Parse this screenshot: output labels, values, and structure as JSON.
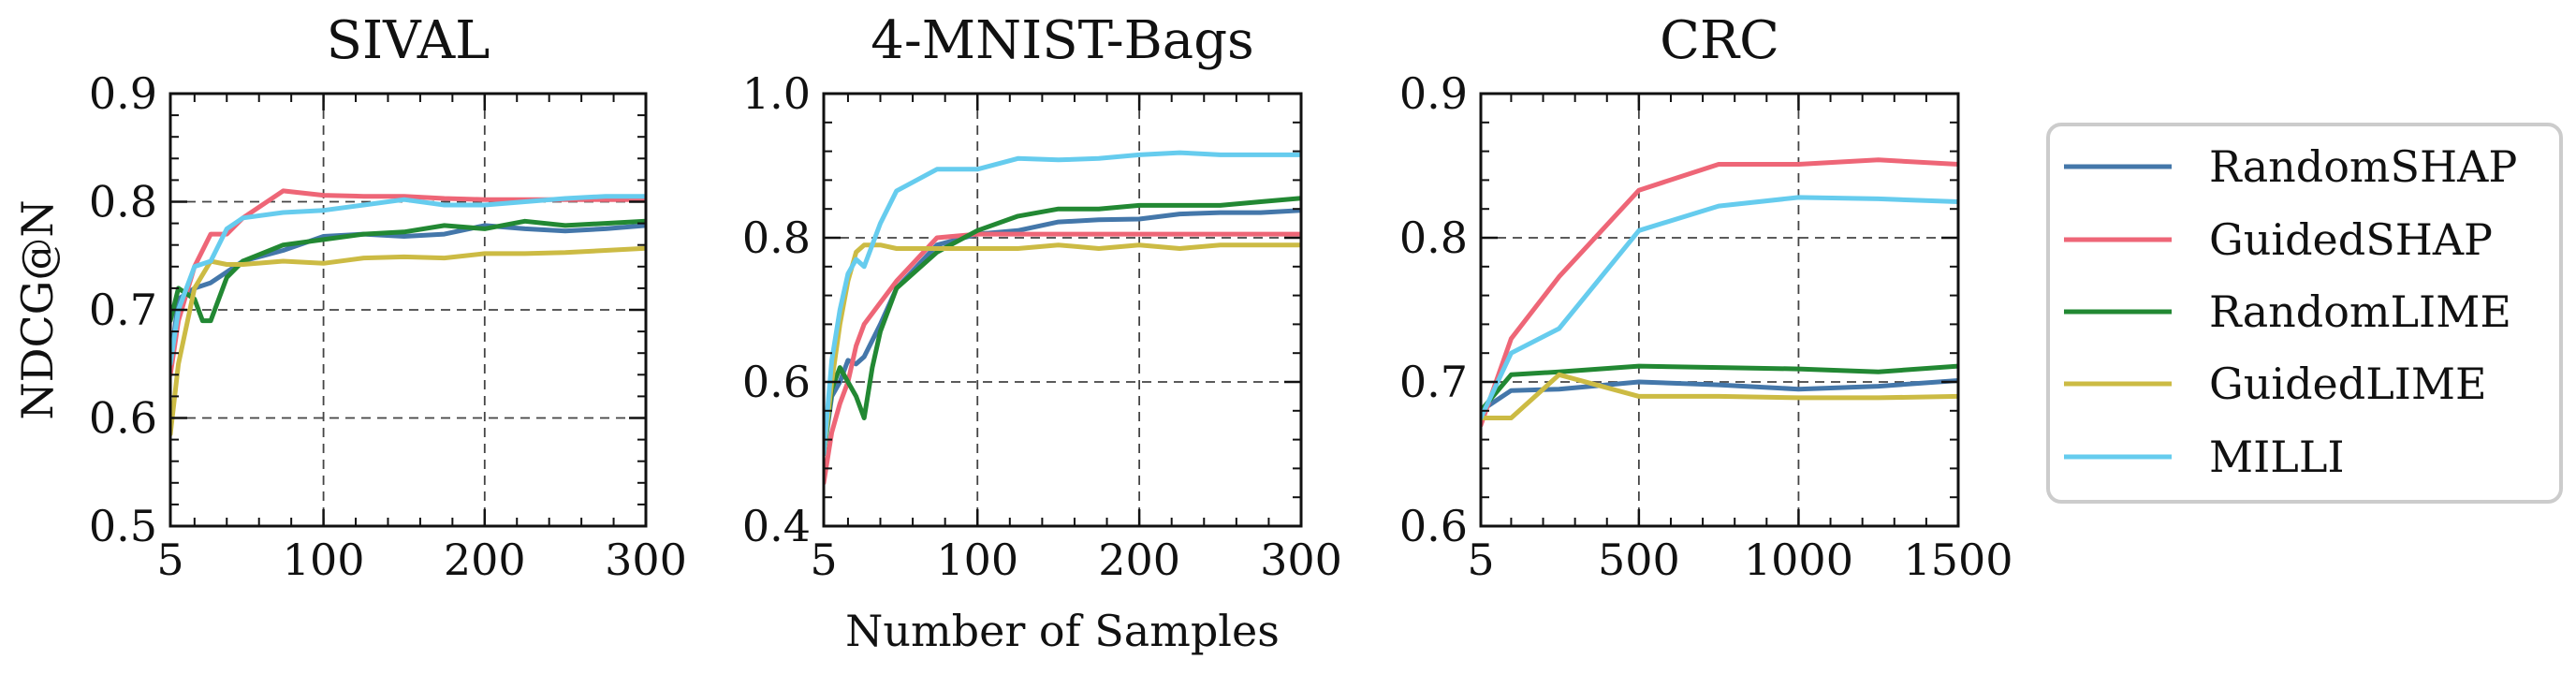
{
  "chart_data": [
    {
      "type": "line",
      "title": "SIVAL",
      "xlabel": "",
      "ylabel": "NDCG@N",
      "xlim": [
        5,
        300
      ],
      "ylim": [
        0.5,
        0.9
      ],
      "xticks": [
        5,
        100,
        200,
        300
      ],
      "yticks": [
        0.5,
        0.6,
        0.7,
        0.8,
        0.9
      ],
      "xtick_labels": [
        "5",
        "100",
        "200",
        "300"
      ],
      "ytick_labels": [
        "0.5",
        "0.6",
        "0.7",
        "0.8",
        "0.9"
      ],
      "grid": true,
      "series": [
        {
          "name": "RandomSHAP",
          "x": [
            5,
            10,
            20,
            30,
            40,
            50,
            75,
            100,
            125,
            150,
            175,
            200,
            225,
            250,
            275,
            300
          ],
          "y": [
            0.65,
            0.71,
            0.72,
            0.725,
            0.735,
            0.745,
            0.755,
            0.768,
            0.77,
            0.768,
            0.77,
            0.778,
            0.775,
            0.773,
            0.775,
            0.778
          ]
        },
        {
          "name": "GuidedSHAP",
          "x": [
            5,
            10,
            20,
            30,
            40,
            50,
            75,
            100,
            125,
            150,
            175,
            200,
            225,
            250,
            275,
            300
          ],
          "y": [
            0.64,
            0.69,
            0.74,
            0.77,
            0.77,
            0.785,
            0.81,
            0.806,
            0.805,
            0.805,
            0.803,
            0.802,
            0.802,
            0.802,
            0.802,
            0.802
          ]
        },
        {
          "name": "RandomLIME",
          "x": [
            5,
            10,
            20,
            25,
            30,
            40,
            50,
            75,
            100,
            125,
            150,
            175,
            200,
            225,
            250,
            275,
            300
          ],
          "y": [
            0.69,
            0.72,
            0.71,
            0.69,
            0.69,
            0.73,
            0.745,
            0.76,
            0.765,
            0.77,
            0.772,
            0.778,
            0.775,
            0.782,
            0.778,
            0.78,
            0.782
          ]
        },
        {
          "name": "GuidedLIME",
          "x": [
            5,
            10,
            20,
            30,
            40,
            50,
            75,
            100,
            125,
            150,
            175,
            200,
            225,
            250,
            275,
            300
          ],
          "y": [
            0.585,
            0.65,
            0.72,
            0.745,
            0.742,
            0.742,
            0.745,
            0.743,
            0.748,
            0.749,
            0.748,
            0.752,
            0.752,
            0.753,
            0.755,
            0.757
          ]
        },
        {
          "name": "MILLI",
          "x": [
            5,
            10,
            20,
            30,
            40,
            50,
            75,
            100,
            125,
            150,
            175,
            200,
            225,
            250,
            275,
            300
          ],
          "y": [
            0.65,
            0.7,
            0.74,
            0.745,
            0.775,
            0.785,
            0.79,
            0.792,
            0.797,
            0.802,
            0.797,
            0.797,
            0.8,
            0.803,
            0.805,
            0.805
          ]
        }
      ]
    },
    {
      "type": "line",
      "title": "4-MNIST-Bags",
      "xlabel": "Number of Samples",
      "ylabel": "",
      "xlim": [
        5,
        300
      ],
      "ylim": [
        0.4,
        1.0
      ],
      "xticks": [
        5,
        100,
        200,
        300
      ],
      "yticks": [
        0.4,
        0.6,
        0.8,
        1.0
      ],
      "xtick_labels": [
        "5",
        "100",
        "200",
        "300"
      ],
      "ytick_labels": [
        "0.4",
        "0.6",
        "0.8",
        "1.0"
      ],
      "grid": true,
      "series": [
        {
          "name": "RandomSHAP",
          "x": [
            5,
            10,
            15,
            20,
            25,
            30,
            40,
            50,
            75,
            100,
            125,
            150,
            175,
            200,
            225,
            250,
            275,
            300
          ],
          "y": [
            0.5,
            0.58,
            0.6,
            0.63,
            0.625,
            0.635,
            0.68,
            0.73,
            0.79,
            0.805,
            0.81,
            0.822,
            0.825,
            0.826,
            0.833,
            0.835,
            0.835,
            0.838
          ]
        },
        {
          "name": "GuidedSHAP",
          "x": [
            5,
            10,
            15,
            20,
            25,
            30,
            40,
            50,
            75,
            100,
            125,
            150,
            175,
            200,
            225,
            250,
            275,
            300
          ],
          "y": [
            0.46,
            0.53,
            0.57,
            0.6,
            0.65,
            0.68,
            0.71,
            0.74,
            0.8,
            0.805,
            0.805,
            0.805,
            0.805,
            0.805,
            0.805,
            0.805,
            0.805,
            0.805
          ]
        },
        {
          "name": "RandomLIME",
          "x": [
            5,
            10,
            15,
            20,
            25,
            30,
            35,
            40,
            50,
            75,
            100,
            125,
            150,
            175,
            200,
            225,
            250,
            275,
            300
          ],
          "y": [
            0.5,
            0.59,
            0.62,
            0.6,
            0.58,
            0.55,
            0.62,
            0.67,
            0.73,
            0.78,
            0.81,
            0.83,
            0.84,
            0.84,
            0.845,
            0.845,
            0.845,
            0.85,
            0.855
          ]
        },
        {
          "name": "GuidedLIME",
          "x": [
            5,
            10,
            15,
            20,
            25,
            30,
            40,
            50,
            75,
            100,
            125,
            150,
            175,
            200,
            225,
            250,
            275,
            300
          ],
          "y": [
            0.5,
            0.6,
            0.68,
            0.74,
            0.78,
            0.79,
            0.79,
            0.785,
            0.785,
            0.785,
            0.785,
            0.79,
            0.785,
            0.79,
            0.785,
            0.79,
            0.79,
            0.79
          ]
        },
        {
          "name": "MILLI",
          "x": [
            5,
            10,
            15,
            20,
            25,
            30,
            40,
            50,
            75,
            100,
            125,
            150,
            175,
            200,
            225,
            250,
            275,
            300
          ],
          "y": [
            0.5,
            0.63,
            0.7,
            0.75,
            0.77,
            0.76,
            0.82,
            0.865,
            0.895,
            0.895,
            0.91,
            0.908,
            0.91,
            0.915,
            0.918,
            0.915,
            0.915,
            0.915
          ]
        }
      ]
    },
    {
      "type": "line",
      "title": "CRC",
      "xlabel": "",
      "ylabel": "",
      "xlim": [
        5,
        1500
      ],
      "ylim": [
        0.6,
        0.9
      ],
      "xticks": [
        5,
        500,
        1000,
        1500
      ],
      "yticks": [
        0.6,
        0.7,
        0.8,
        0.9
      ],
      "xtick_labels": [
        "5",
        "500",
        "1000",
        "1500"
      ],
      "ytick_labels": [
        "0.6",
        "0.7",
        "0.8",
        "0.9"
      ],
      "grid": true,
      "series": [
        {
          "name": "RandomSHAP",
          "x": [
            5,
            100,
            250,
            500,
            750,
            1000,
            1250,
            1500
          ],
          "y": [
            0.68,
            0.694,
            0.695,
            0.7,
            0.698,
            0.695,
            0.697,
            0.701
          ]
        },
        {
          "name": "GuidedSHAP",
          "x": [
            5,
            100,
            250,
            500,
            750,
            1000,
            1250,
            1500
          ],
          "y": [
            0.67,
            0.73,
            0.773,
            0.833,
            0.851,
            0.851,
            0.854,
            0.851
          ]
        },
        {
          "name": "RandomLIME",
          "x": [
            5,
            100,
            250,
            500,
            750,
            1000,
            1250,
            1500
          ],
          "y": [
            0.68,
            0.705,
            0.707,
            0.711,
            0.71,
            0.709,
            0.707,
            0.711
          ]
        },
        {
          "name": "GuidedLIME",
          "x": [
            5,
            50,
            100,
            250,
            500,
            750,
            1000,
            1250,
            1500
          ],
          "y": [
            0.675,
            0.675,
            0.675,
            0.705,
            0.69,
            0.69,
            0.689,
            0.689,
            0.69
          ]
        },
        {
          "name": "MILLI",
          "x": [
            5,
            100,
            250,
            500,
            750,
            1000,
            1250,
            1500
          ],
          "y": [
            0.675,
            0.72,
            0.737,
            0.805,
            0.822,
            0.828,
            0.827,
            0.825
          ]
        }
      ]
    }
  ],
  "legend": {
    "placement": "right",
    "entries": [
      {
        "name": "RandomSHAP",
        "color": "#4477aa"
      },
      {
        "name": "GuidedSHAP",
        "color": "#ee6677"
      },
      {
        "name": "RandomLIME",
        "color": "#228833"
      },
      {
        "name": "GuidedLIME",
        "color": "#ccbb44"
      },
      {
        "name": "MILLI",
        "color": "#66ccee"
      }
    ]
  }
}
